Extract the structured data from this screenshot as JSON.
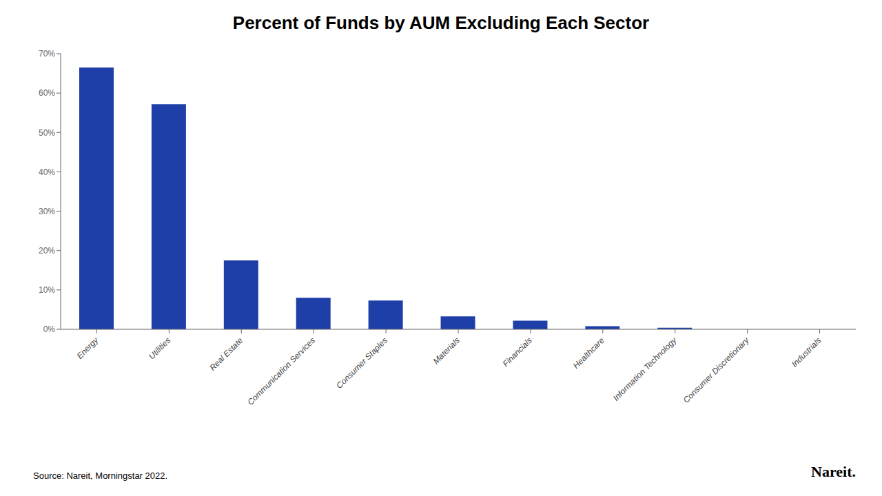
{
  "chart_data": {
    "type": "bar",
    "title": "Percent of Funds by AUM Excluding Each Sector",
    "categories": [
      "Energy",
      "Utilities",
      "Real Estate",
      "Communication Services",
      "Consumer Staples",
      "Materials",
      "Financials",
      "Healthcare",
      "Information Technology",
      "Consumer Discretionary",
      "Industrials"
    ],
    "values": [
      0.665,
      0.572,
      0.175,
      0.08,
      0.073,
      0.033,
      0.022,
      0.008,
      0.004,
      0.0,
      0.0
    ],
    "color": "#1f3fa8",
    "ylim": [
      0,
      0.7
    ],
    "yticks": [
      {
        "value": 0.0,
        "label": "0%"
      },
      {
        "value": 0.1,
        "label": "10%"
      },
      {
        "value": 0.2,
        "label": "20%"
      },
      {
        "value": 0.3,
        "label": "30%"
      },
      {
        "value": 0.4,
        "label": "40%"
      },
      {
        "value": 0.5,
        "label": "50%"
      },
      {
        "value": 0.6,
        "label": "60%"
      },
      {
        "value": 0.7,
        "label": "70%"
      }
    ],
    "grid": false,
    "annotations": [
      "Source: Nareit, Morningstar 2022.",
      "Nareit."
    ]
  }
}
